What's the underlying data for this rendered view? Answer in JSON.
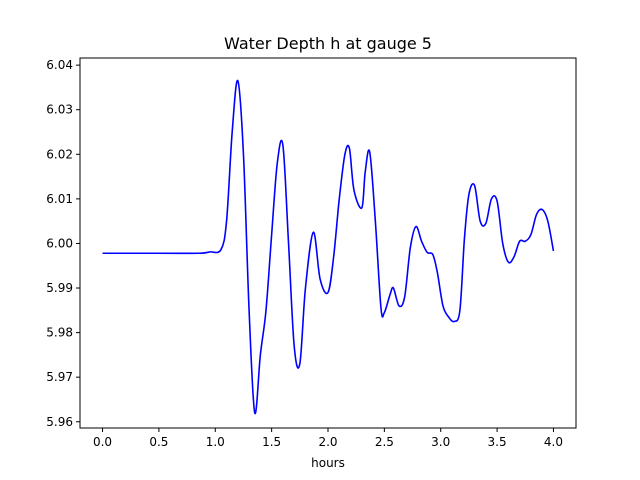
{
  "chart_data": {
    "type": "line",
    "title": "Water Depth h at gauge 5",
    "xlabel": "hours",
    "ylabel": "",
    "xlim": [
      -0.2,
      4.2
    ],
    "ylim": [
      5.9586,
      6.0416
    ],
    "xticks": [
      "0.0",
      "0.5",
      "1.0",
      "1.5",
      "2.0",
      "2.5",
      "3.0",
      "3.5",
      "4.0"
    ],
    "yticks": [
      "5.96",
      "5.97",
      "5.98",
      "5.99",
      "6.00",
      "6.01",
      "6.02",
      "6.03",
      "6.04"
    ],
    "grid": false,
    "series": [
      {
        "color": "#0000ff",
        "x": [
          0.0,
          0.5,
          0.85,
          0.95,
          1.05,
          1.1,
          1.15,
          1.2,
          1.25,
          1.3,
          1.35,
          1.4,
          1.45,
          1.5,
          1.55,
          1.6,
          1.65,
          1.7,
          1.75,
          1.8,
          1.87,
          1.93,
          2.0,
          2.05,
          2.1,
          2.15,
          2.19,
          2.23,
          2.3,
          2.33,
          2.37,
          2.42,
          2.47,
          2.5,
          2.55,
          2.58,
          2.63,
          2.68,
          2.73,
          2.78,
          2.83,
          2.88,
          2.93,
          2.97,
          3.02,
          3.07,
          3.12,
          3.17,
          3.21,
          3.25,
          3.3,
          3.35,
          3.4,
          3.45,
          3.5,
          3.55,
          3.6,
          3.65,
          3.7,
          3.75,
          3.8,
          3.85,
          3.9,
          3.95,
          4.0
        ],
        "values": [
          5.9978,
          5.9978,
          5.9978,
          5.9981,
          5.9986,
          6.005,
          6.025,
          6.0365,
          6.02,
          5.985,
          5.962,
          5.975,
          5.985,
          6.002,
          6.018,
          6.022,
          6.0,
          5.977,
          5.973,
          5.99,
          6.0025,
          5.992,
          5.989,
          5.997,
          6.01,
          6.02,
          6.0213,
          6.012,
          6.008,
          6.016,
          6.0205,
          6.005,
          5.9855,
          5.9845,
          5.9885,
          5.99,
          5.986,
          5.988,
          5.999,
          6.0038,
          6.0005,
          5.998,
          5.9975,
          5.9935,
          5.986,
          5.9835,
          5.9825,
          5.985,
          6.001,
          6.011,
          6.013,
          6.005,
          6.0045,
          6.01,
          6.0095,
          6.0,
          5.9958,
          5.997,
          6.0005,
          6.0005,
          6.002,
          6.0065,
          6.0076,
          6.005,
          5.9983
        ]
      }
    ]
  }
}
